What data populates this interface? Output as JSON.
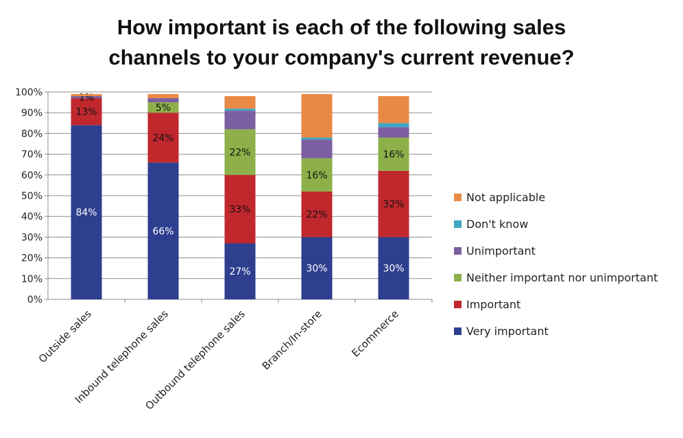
{
  "chart_data": {
    "type": "bar",
    "stacked": true,
    "title": "How important is each of the following sales channels to your company's current revenue?",
    "title_lines": [
      "How important is each of the following sales",
      "channels to your company's current revenue?"
    ],
    "categories": [
      "Outside sales",
      "Inbound telephone sales",
      "Outbound telephone sales",
      "Branch/In-store",
      "Ecommerce"
    ],
    "series": [
      {
        "name": "Very important",
        "color": "#2E3F8F",
        "values": [
          84,
          66,
          27,
          30,
          30
        ],
        "labels": [
          "84%",
          "66%",
          "27%",
          "30%",
          "30%"
        ]
      },
      {
        "name": "Important",
        "color": "#C0282E",
        "values": [
          13,
          24,
          33,
          22,
          32
        ],
        "labels": [
          "13%",
          "24%",
          "33%",
          "22%",
          "32%"
        ]
      },
      {
        "name": "Neither important nor unimportant",
        "color": "#8DB04A",
        "values": [
          0,
          5,
          22,
          16,
          16
        ],
        "labels": [
          "",
          "5%",
          "22%",
          "16%",
          "16%"
        ]
      },
      {
        "name": "Unimportant",
        "color": "#7C5FA0",
        "values": [
          1,
          2,
          9,
          9,
          5
        ],
        "labels": [
          "1%",
          "",
          "",
          "",
          ""
        ]
      },
      {
        "name": "Don't know",
        "color": "#3FA6C1",
        "values": [
          0,
          0,
          1,
          1,
          2
        ],
        "labels": [
          "",
          "",
          "",
          "",
          ""
        ]
      },
      {
        "name": "Not applicable",
        "color": "#E88A45",
        "values": [
          1,
          2,
          6,
          21,
          13
        ],
        "labels": [
          "",
          "",
          "",
          "",
          ""
        ]
      }
    ],
    "ylim": [
      0,
      100
    ],
    "yticks": [
      "0%",
      "10%",
      "20%",
      "30%",
      "40%",
      "50%",
      "60%",
      "70%",
      "80%",
      "90%",
      "100%"
    ],
    "grid": true,
    "legend_position": "right",
    "legend_order": [
      "Not applicable",
      "Don't know",
      "Unimportant",
      "Neither important nor unimportant",
      "Important",
      "Very important"
    ]
  }
}
